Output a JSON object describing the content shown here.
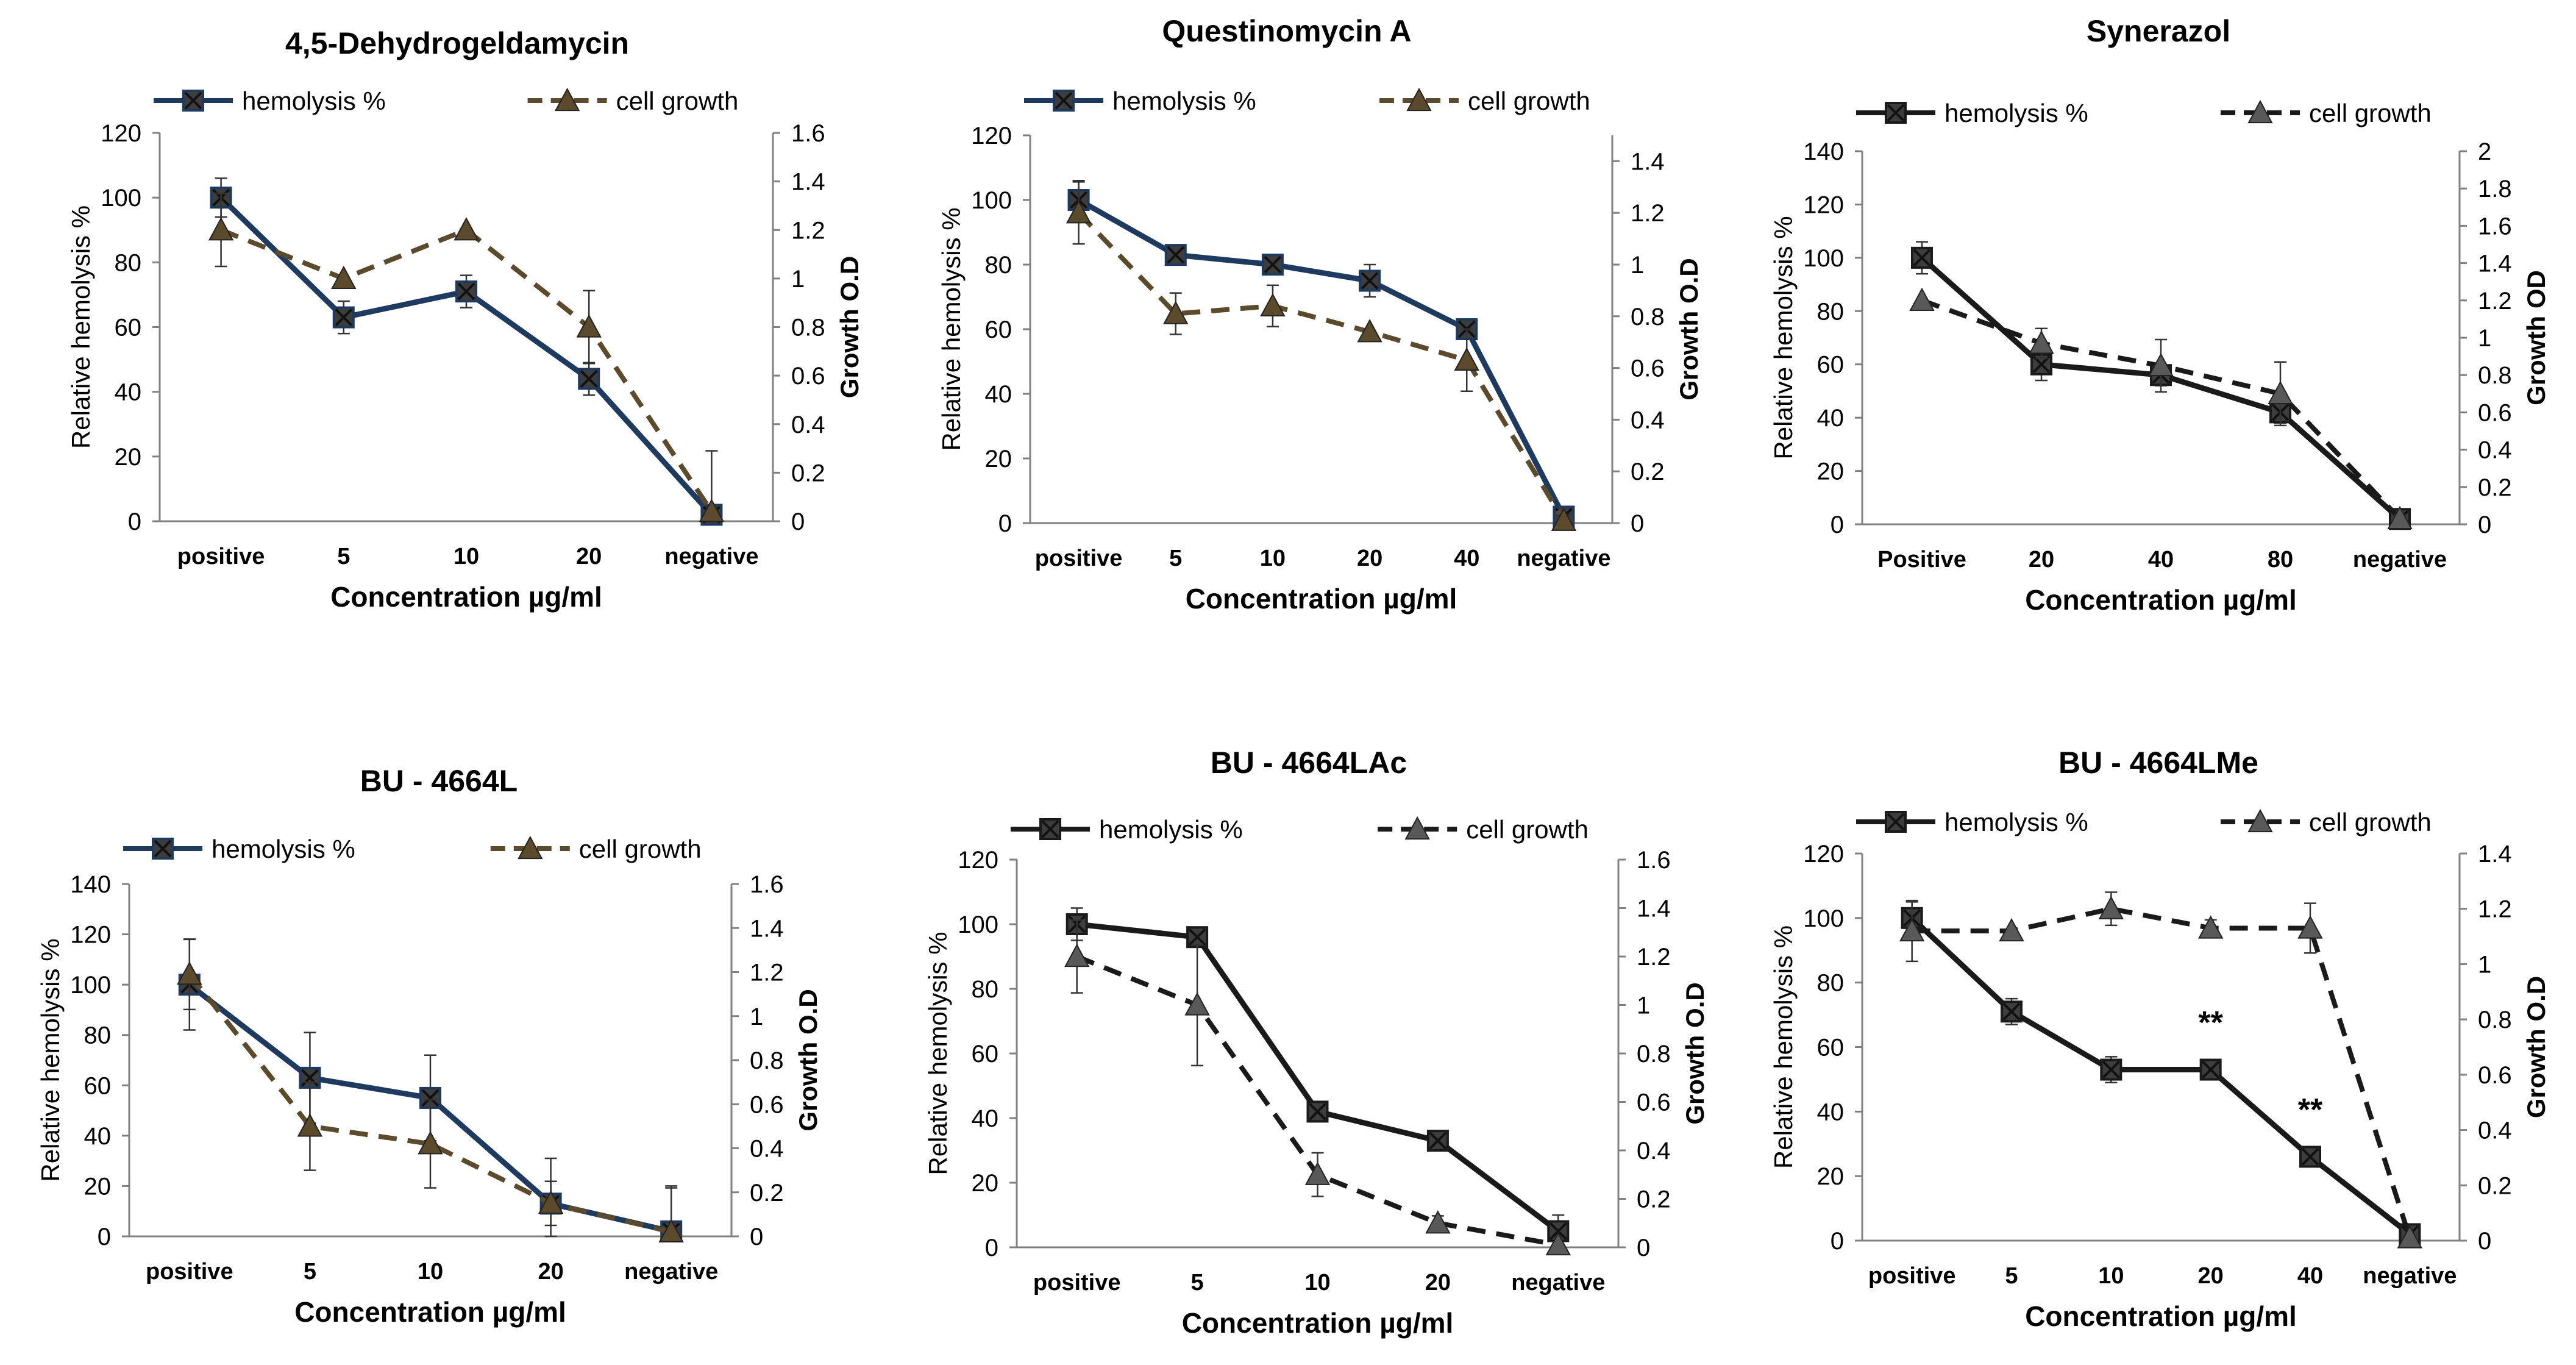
{
  "chart_data": [
    {
      "type": "line",
      "title": "4,5-Dehydrogeldamycin",
      "categories": [
        "positive",
        "5",
        "10",
        "20",
        "negative"
      ],
      "xlabel": "Concentration µg/ml",
      "ylabel": "Relative hemolysis %",
      "y2label": "Growth O.D",
      "ylim": [
        0,
        120
      ],
      "yticks": [
        0,
        20,
        40,
        60,
        80,
        100,
        120
      ],
      "y2lim": [
        0,
        1.6
      ],
      "y2ticks": [
        "0",
        "0.2",
        "0.4",
        "0.6",
        "0.8",
        "1",
        "1.2",
        "1.4",
        "1.6"
      ],
      "series": [
        {
          "name": "hemolysis %",
          "axis": "left",
          "color": "#1F3A5F",
          "dash": false,
          "marker": "square",
          "values": [
            100,
            63,
            71,
            44,
            2
          ],
          "errors": [
            6,
            5,
            5,
            5,
            2
          ]
        },
        {
          "name": "cell growth",
          "axis": "right",
          "color": "#5B4A2B",
          "dash": true,
          "marker": "triangle",
          "values": [
            1.2,
            1.0,
            1.2,
            0.8,
            0.04
          ],
          "errors": [
            0.15,
            0,
            0,
            0.15,
            0.25
          ]
        }
      ],
      "annotations": []
    },
    {
      "type": "line",
      "title": "Questinomycin A",
      "categories": [
        "positive",
        "5",
        "10",
        "20",
        "40",
        "negative"
      ],
      "xlabel": "Concentration µg/ml",
      "ylabel": "Relative hemolysis %",
      "y2label": "Growth O.D",
      "ylim": [
        0,
        120
      ],
      "yticks": [
        0,
        20,
        40,
        60,
        80,
        100,
        120
      ],
      "y2lim": [
        0,
        1.5
      ],
      "y2ticks": [
        "0",
        "0.2",
        "0.4",
        "0.6",
        "0.8",
        "1",
        "1.2",
        "1.4"
      ],
      "series": [
        {
          "name": "hemolysis %",
          "axis": "left",
          "color": "#1F3A5F",
          "dash": false,
          "marker": "square",
          "values": [
            100,
            83,
            80,
            75,
            60,
            2
          ],
          "errors": [
            6,
            0,
            2,
            5,
            3,
            2
          ]
        },
        {
          "name": "cell growth",
          "axis": "right",
          "color": "#5B4A2B",
          "dash": true,
          "marker": "triangle",
          "values": [
            1.2,
            0.81,
            0.84,
            0.74,
            0.63,
            0.01
          ],
          "errors": [
            0.12,
            0.08,
            0.08,
            0,
            0.12,
            0.02
          ]
        }
      ],
      "annotations": []
    },
    {
      "type": "line",
      "title": "Synerazol",
      "categories": [
        "Positive",
        "20",
        "40",
        "80",
        "negative"
      ],
      "xlabel": "Concentration µg/ml",
      "ylabel": "Relative hemolysis %",
      "y2label": "Growth OD",
      "ylim": [
        0,
        140
      ],
      "yticks": [
        0,
        20,
        40,
        60,
        80,
        100,
        120,
        140
      ],
      "y2lim": [
        0,
        2
      ],
      "y2ticks": [
        "0",
        "0.2",
        "0.4",
        "0.6",
        "0.8",
        "1",
        "1.2",
        "1.4",
        "1.6",
        "1.8",
        "2"
      ],
      "series": [
        {
          "name": "hemolysis %",
          "axis": "left",
          "color": "#1a1a1a",
          "dash": false,
          "marker": "square",
          "values": [
            100,
            60,
            56,
            42,
            2
          ],
          "errors": [
            6,
            6,
            4,
            4,
            2
          ]
        },
        {
          "name": "cell growth",
          "axis": "right",
          "color": "#1a1a1a",
          "dash": true,
          "marker": "triangle",
          "values": [
            1.2,
            0.97,
            0.85,
            0.7,
            0.03
          ],
          "errors": [
            0,
            0.08,
            0.14,
            0.17,
            0.02
          ]
        }
      ],
      "annotations": []
    },
    {
      "type": "line",
      "title": "BU - 4664L",
      "categories": [
        "positive",
        "5",
        "10",
        "20",
        "negative"
      ],
      "xlabel": "Concentration µg/ml",
      "ylabel": "Relative hemolysis %",
      "y2label": "Growth O.D",
      "ylim": [
        0,
        140
      ],
      "yticks": [
        0,
        20,
        40,
        60,
        80,
        100,
        120,
        140
      ],
      "y2lim": [
        0,
        1.6
      ],
      "y2ticks": [
        "0",
        "0.2",
        "0.4",
        "0.6",
        "0.8",
        "1",
        "1.2",
        "1.4",
        "1.6"
      ],
      "series": [
        {
          "name": "hemolysis %",
          "axis": "left",
          "color": "#1F3A5F",
          "dash": false,
          "marker": "square",
          "values": [
            100,
            63,
            55,
            13,
            2
          ],
          "errors": [
            18,
            18,
            17,
            18,
            18
          ]
        },
        {
          "name": "cell growth",
          "axis": "right",
          "color": "#5B4A2B",
          "dash": true,
          "marker": "triangle",
          "values": [
            1.19,
            0.5,
            0.42,
            0.15,
            0.02
          ],
          "errors": [
            0.16,
            0.2,
            0.2,
            0.1,
            0.2
          ]
        }
      ],
      "annotations": []
    },
    {
      "type": "line",
      "title": "BU - 4664LAc",
      "categories": [
        "positive",
        "5",
        "10",
        "20",
        "negative"
      ],
      "xlabel": "Concentration µg/ml",
      "ylabel": "Relative hemolysis %",
      "y2label": "Growth O.D",
      "ylim": [
        0,
        120
      ],
      "yticks": [
        0,
        20,
        40,
        60,
        80,
        100,
        120
      ],
      "y2lim": [
        0,
        1.6
      ],
      "y2ticks": [
        "0",
        "0.2",
        "0.4",
        "0.6",
        "0.8",
        "1",
        "1.2",
        "1.4",
        "1.6"
      ],
      "series": [
        {
          "name": "hemolysis %",
          "axis": "left",
          "color": "#1a1a1a",
          "dash": false,
          "marker": "square",
          "values": [
            100,
            96,
            42,
            33,
            5
          ],
          "errors": [
            5,
            0,
            3,
            0,
            5
          ]
        },
        {
          "name": "cell growth",
          "axis": "right",
          "color": "#1a1a1a",
          "dash": true,
          "marker": "triangle",
          "values": [
            1.2,
            1.0,
            0.3,
            0.1,
            0.01
          ],
          "errors": [
            0.15,
            0.25,
            0.09,
            0.03,
            0
          ]
        }
      ],
      "annotations": []
    },
    {
      "type": "line",
      "title": "BU - 4664LMe",
      "categories": [
        "positive",
        "5",
        "10",
        "20",
        "40",
        "negative"
      ],
      "xlabel": "Concentration µg/ml",
      "ylabel": "Relative hemolysis %",
      "y2label": "Growth O.D",
      "ylim": [
        0,
        120
      ],
      "yticks": [
        0,
        20,
        40,
        60,
        80,
        100,
        120
      ],
      "y2lim": [
        0,
        1.4
      ],
      "y2ticks": [
        "0",
        "0.2",
        "0.4",
        "0.6",
        "0.8",
        "1",
        "1.2",
        "1.4"
      ],
      "series": [
        {
          "name": "hemolysis %",
          "axis": "left",
          "color": "#1a1a1a",
          "dash": false,
          "marker": "square",
          "values": [
            100,
            71,
            53,
            53,
            26,
            2
          ],
          "errors": [
            5,
            4,
            4,
            3,
            0,
            2
          ]
        },
        {
          "name": "cell growth",
          "axis": "right",
          "color": "#1a1a1a",
          "dash": true,
          "marker": "triangle",
          "values": [
            1.12,
            1.12,
            1.2,
            1.13,
            1.13,
            0.01
          ],
          "errors": [
            0.11,
            0,
            0.06,
            0.03,
            0.09,
            0
          ]
        }
      ],
      "annotations": [
        {
          "text": "**",
          "category": "20",
          "value": 68
        },
        {
          "text": "**",
          "category": "40",
          "value": 41
        }
      ]
    }
  ]
}
